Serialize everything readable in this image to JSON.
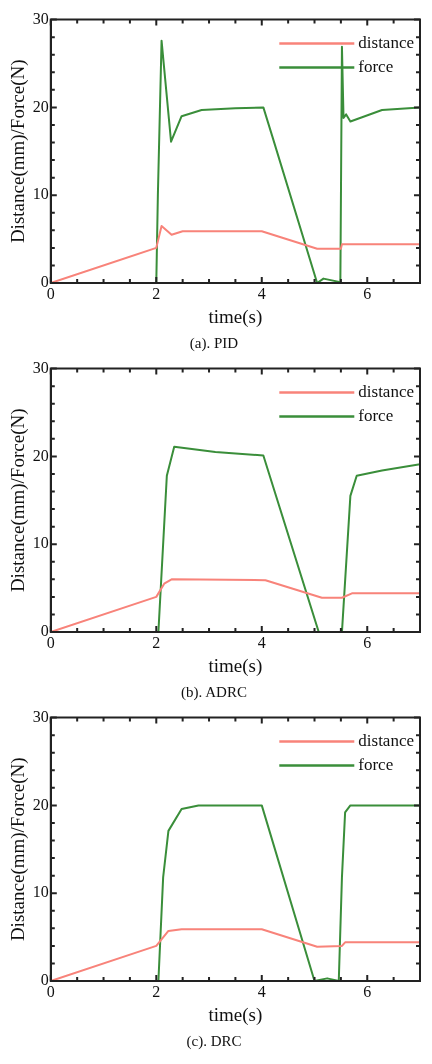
{
  "chart_data": [
    {
      "type": "line",
      "title": "(a). PID",
      "xlabel": "time(s)",
      "ylabel": "Distance(mm)/Force(N)",
      "xlim": [
        0,
        7
      ],
      "ylim": [
        0,
        30
      ],
      "xticks": [
        0,
        {
          "value": 0.5,
          "label": null
        },
        {
          "value": 1,
          "label": null
        },
        {
          "value": 1.5,
          "label": null
        },
        2,
        {
          "value": 2.5,
          "label": null
        },
        {
          "value": 3,
          "label": null
        },
        {
          "value": 3.5,
          "label": null
        },
        4,
        {
          "value": 4.5,
          "label": null
        },
        {
          "value": 5,
          "label": null
        },
        {
          "value": 5.5,
          "label": null
        },
        6,
        {
          "value": 6.5,
          "label": null
        }
      ],
      "yticks": [
        0,
        {
          "value": 2,
          "label": null
        },
        {
          "value": 4,
          "label": null
        },
        {
          "value": 6,
          "label": null
        },
        {
          "value": 8,
          "label": null
        },
        10,
        {
          "value": 12,
          "label": null
        },
        {
          "value": 14,
          "label": null
        },
        {
          "value": 16,
          "label": null
        },
        {
          "value": 18,
          "label": null
        },
        20,
        {
          "value": 22,
          "label": null
        },
        {
          "value": 24,
          "label": null
        },
        {
          "value": 26,
          "label": null
        },
        {
          "value": 28,
          "label": null
        },
        30
      ],
      "grid": false,
      "legend": "top right",
      "line_style": "solid",
      "marker": "none",
      "series": [
        {
          "name": "distance",
          "color": "#f8837a",
          "x": [
            0,
            2,
            2.1,
            2.29,
            2.5,
            4,
            5.05,
            5.5,
            5.52,
            7
          ],
          "values": [
            0,
            4,
            6.5,
            5.5,
            5.9,
            5.9,
            3.9,
            3.9,
            4.4,
            4.4
          ]
        },
        {
          "name": "force",
          "color": "#3a8e3a",
          "x": [
            0,
            2,
            2.03,
            2.1,
            2.28,
            2.48,
            2.86,
            3.5,
            4.03,
            4.2,
            5.05,
            5.17,
            5.49,
            5.52,
            5.55,
            5.6,
            5.68,
            6.28,
            7
          ],
          "values": [
            0,
            0,
            10,
            27.6,
            16.1,
            19,
            19.7,
            19.9,
            20,
            16.7,
            0,
            0.5,
            0.1,
            26.9,
            18.8,
            19.2,
            18.4,
            19.7,
            20
          ]
        }
      ]
    },
    {
      "type": "line",
      "title": "(b). ADRC",
      "xlabel": "time(s)",
      "ylabel": "Distance(mm)/Force(N)",
      "xlim": [
        0,
        7
      ],
      "ylim": [
        0,
        30
      ],
      "xticks": [
        0,
        {
          "value": 0.5,
          "label": null
        },
        {
          "value": 1,
          "label": null
        },
        {
          "value": 1.5,
          "label": null
        },
        2,
        {
          "value": 2.5,
          "label": null
        },
        {
          "value": 3,
          "label": null
        },
        {
          "value": 3.5,
          "label": null
        },
        4,
        {
          "value": 4.5,
          "label": null
        },
        {
          "value": 5,
          "label": null
        },
        {
          "value": 5.5,
          "label": null
        },
        6,
        {
          "value": 6.5,
          "label": null
        }
      ],
      "yticks": [
        0,
        {
          "value": 2,
          "label": null
        },
        {
          "value": 4,
          "label": null
        },
        {
          "value": 6,
          "label": null
        },
        {
          "value": 8,
          "label": null
        },
        10,
        {
          "value": 12,
          "label": null
        },
        {
          "value": 14,
          "label": null
        },
        {
          "value": 16,
          "label": null
        },
        {
          "value": 18,
          "label": null
        },
        20,
        {
          "value": 22,
          "label": null
        },
        {
          "value": 24,
          "label": null
        },
        {
          "value": 26,
          "label": null
        },
        {
          "value": 28,
          "label": null
        },
        30
      ],
      "grid": false,
      "legend": "top right",
      "line_style": "solid",
      "marker": "none",
      "series": [
        {
          "name": "distance",
          "color": "#f8837a",
          "x": [
            0,
            2,
            2.15,
            2.29,
            4.07,
            5.14,
            5.52,
            5.71,
            7
          ],
          "values": [
            0,
            4,
            5.5,
            6,
            5.9,
            3.9,
            3.9,
            4.4,
            4.4
          ]
        },
        {
          "name": "force",
          "color": "#3a8e3a",
          "x": [
            0,
            2.04,
            2.2,
            2.34,
            3.12,
            4.03,
            5.08,
            5.52,
            5.68,
            5.8,
            6.28,
            7
          ],
          "values": [
            0,
            0,
            17.8,
            21.1,
            20.5,
            20.1,
            0,
            0,
            15.5,
            17.8,
            18.4,
            19.1
          ]
        }
      ]
    },
    {
      "type": "line",
      "title": "(c). DRC",
      "xlabel": "time(s)",
      "ylabel": "Distance(mm)/Force(N)",
      "xlim": [
        0,
        7
      ],
      "ylim": [
        0,
        30
      ],
      "xticks": [
        0,
        {
          "value": 0.5,
          "label": null
        },
        {
          "value": 1,
          "label": null
        },
        {
          "value": 1.5,
          "label": null
        },
        2,
        {
          "value": 2.5,
          "label": null
        },
        {
          "value": 3,
          "label": null
        },
        {
          "value": 3.5,
          "label": null
        },
        4,
        {
          "value": 4.5,
          "label": null
        },
        {
          "value": 5,
          "label": null
        },
        {
          "value": 5.5,
          "label": null
        },
        6,
        {
          "value": 6.5,
          "label": null
        }
      ],
      "yticks": [
        0,
        {
          "value": 2,
          "label": null
        },
        {
          "value": 4,
          "label": null
        },
        {
          "value": 6,
          "label": null
        },
        {
          "value": 8,
          "label": null
        },
        10,
        {
          "value": 12,
          "label": null
        },
        {
          "value": 14,
          "label": null
        },
        {
          "value": 16,
          "label": null
        },
        {
          "value": 18,
          "label": null
        },
        20,
        {
          "value": 22,
          "label": null
        },
        {
          "value": 24,
          "label": null
        },
        {
          "value": 26,
          "label": null
        },
        {
          "value": 28,
          "label": null
        },
        30
      ],
      "grid": false,
      "legend": "top right",
      "line_style": "solid",
      "marker": "none",
      "series": [
        {
          "name": "distance",
          "color": "#f8837a",
          "x": [
            0,
            2,
            2.23,
            2.48,
            4,
            5.05,
            5.52,
            5.58,
            7
          ],
          "values": [
            0,
            4,
            5.7,
            5.9,
            5.9,
            3.9,
            4,
            4.4,
            4.4
          ]
        },
        {
          "name": "force",
          "color": "#3a8e3a",
          "x": [
            0,
            2.04,
            2.13,
            2.23,
            2.48,
            2.8,
            4,
            5,
            5.24,
            5.46,
            5.52,
            5.58,
            5.68,
            7
          ],
          "values": [
            0,
            0,
            11.8,
            17.1,
            19.6,
            20,
            20,
            0,
            0.3,
            0,
            11.8,
            19.2,
            20,
            20
          ]
        }
      ]
    }
  ]
}
